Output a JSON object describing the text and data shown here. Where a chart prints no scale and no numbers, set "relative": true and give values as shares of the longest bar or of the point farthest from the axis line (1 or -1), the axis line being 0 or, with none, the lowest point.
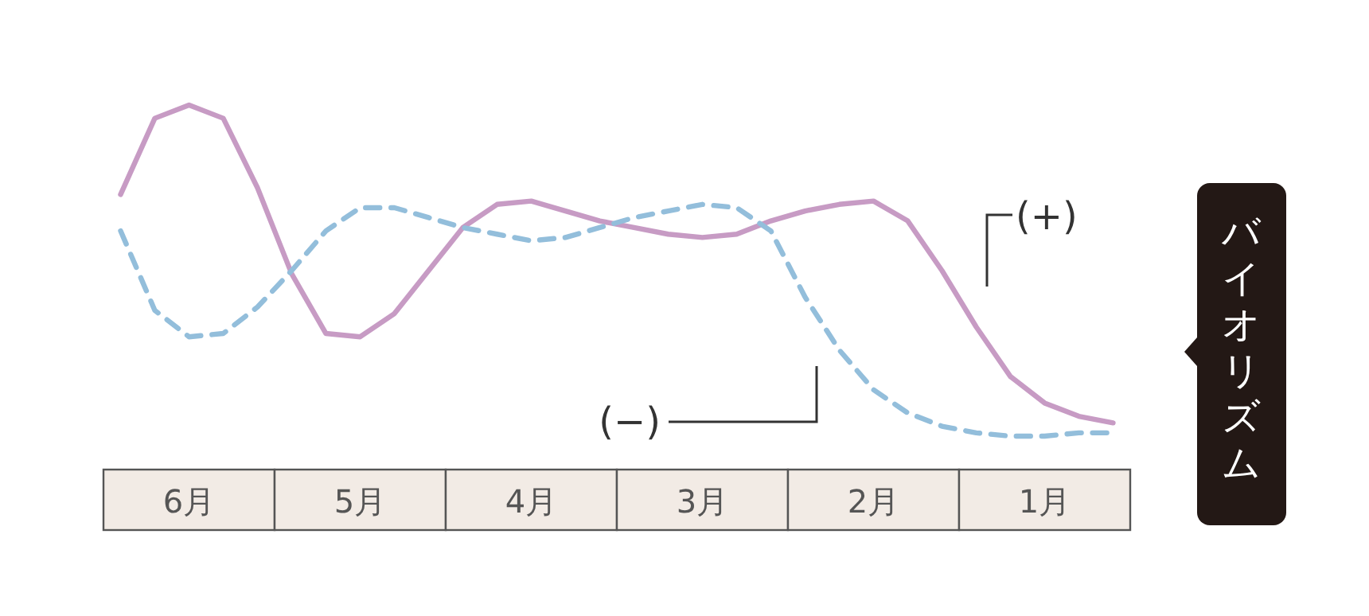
{
  "chart_data": {
    "type": "line",
    "relative": true,
    "categories": [
      null,
      null,
      "6月",
      null,
      null,
      null,
      null,
      "5月",
      null,
      null,
      null,
      null,
      "4月",
      null,
      null,
      null,
      null,
      "3月",
      null,
      null,
      null,
      null,
      "2月",
      null,
      null,
      null,
      null,
      "1月",
      null,
      null
    ],
    "ylabel": "バイオリズム",
    "series": [
      {
        "color": "#c79bc4",
        "line_style": "solid",
        "values": [
          0.73,
          0.96,
          1.0,
          0.96,
          0.75,
          0.49,
          0.31,
          0.3,
          0.37,
          0.5,
          0.63,
          0.7,
          0.71,
          0.68,
          0.65,
          0.63,
          0.61,
          0.6,
          0.61,
          0.65,
          0.68,
          0.7,
          0.71,
          0.65,
          0.5,
          0.33,
          0.18,
          0.1,
          0.06,
          0.04
        ]
      },
      {
        "color": "#93bedb",
        "line_style": "dashed",
        "values": [
          0.62,
          0.38,
          0.3,
          0.31,
          0.39,
          0.5,
          0.62,
          0.69,
          0.69,
          0.66,
          0.63,
          0.61,
          0.59,
          0.6,
          0.63,
          0.66,
          0.68,
          0.7,
          0.69,
          0.62,
          0.42,
          0.26,
          0.14,
          0.07,
          0.03,
          0.01,
          0,
          0,
          0.01,
          0.01
        ]
      }
    ],
    "annotations": [
      "(+)",
      "(−)"
    ]
  }
}
